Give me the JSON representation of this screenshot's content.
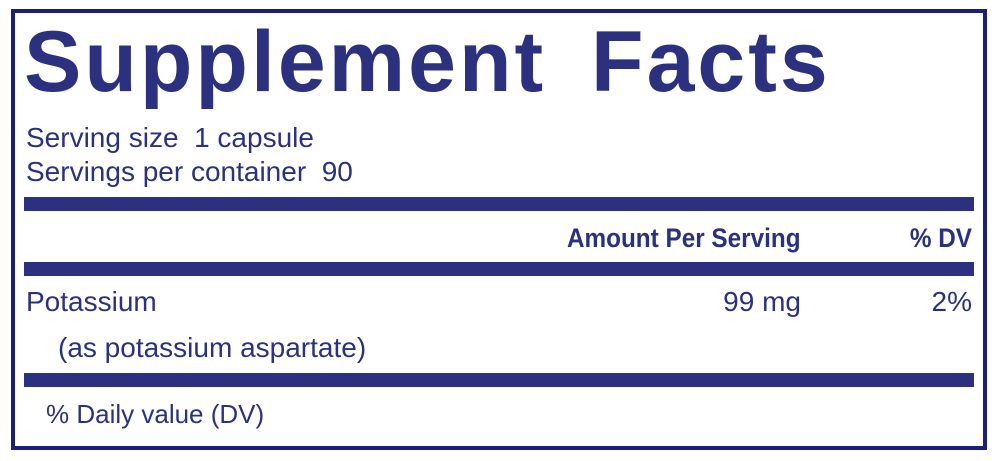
{
  "title": "Supplement Facts",
  "serving_size": "Serving size  1 capsule",
  "servings_per_container": "Servings per container  90",
  "headers": {
    "amount": "Amount Per Serving",
    "dv": "% DV"
  },
  "rows": [
    {
      "name": "Potassium",
      "sub": "(as potassium aspartate)",
      "amount": "99 mg",
      "dv": "2%"
    }
  ],
  "footnote": "% Daily value (DV)",
  "colors": {
    "ink": "#2b317f",
    "border": "#1c1f78"
  }
}
